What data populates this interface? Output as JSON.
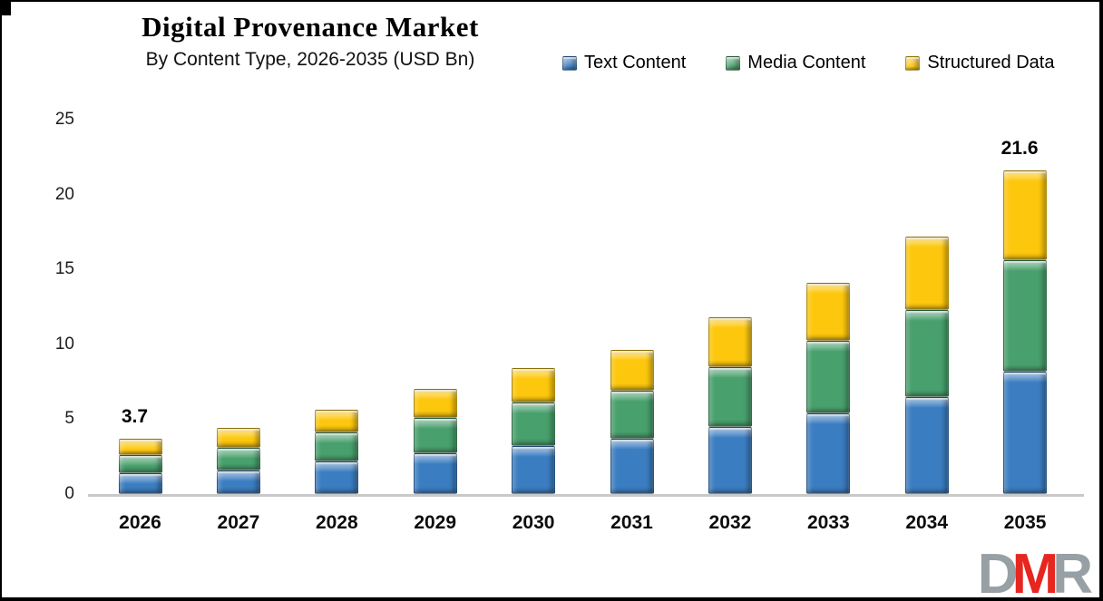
{
  "header": {
    "title": "Digital Provenance Market",
    "subtitle": "By Content Type, 2026-2035 (USD Bn)"
  },
  "chart_data": {
    "type": "bar",
    "stacked": true,
    "title": "Digital Provenance Market",
    "subtitle": "By Content Type, 2026-2035 (USD Bn)",
    "unit": "USD Bn",
    "categories": [
      "2026",
      "2027",
      "2028",
      "2029",
      "2030",
      "2031",
      "2032",
      "2033",
      "2034",
      "2035"
    ],
    "series": [
      {
        "name": "Text Content",
        "color": "#3b7dc1",
        "values": [
          1.4,
          1.6,
          2.2,
          2.7,
          3.2,
          3.7,
          4.5,
          5.4,
          6.5,
          8.2
        ]
      },
      {
        "name": "Media Content",
        "color": "#48a06c",
        "values": [
          1.2,
          1.5,
          1.9,
          2.4,
          2.9,
          3.2,
          4.0,
          4.8,
          5.8,
          7.4
        ]
      },
      {
        "name": "Structured Data",
        "color": "#fdc70d",
        "values": [
          1.1,
          1.3,
          1.5,
          1.9,
          2.3,
          2.7,
          3.3,
          3.9,
          4.9,
          6.0
        ]
      }
    ],
    "totals": [
      3.7,
      4.4,
      5.6,
      7.0,
      8.4,
      9.6,
      11.8,
      14.1,
      17.2,
      21.6
    ],
    "data_labels": [
      {
        "category": "2026",
        "text": "3.7"
      },
      {
        "category": "2035",
        "text": "21.6"
      }
    ],
    "ylim": [
      0,
      25
    ],
    "yticks": [
      0,
      5,
      10,
      15,
      20,
      25
    ],
    "gridlines": false,
    "legend_position": "top-right",
    "xlabel": "",
    "ylabel": ""
  },
  "watermark": {
    "letters": [
      {
        "char": "D",
        "color": "#97a0a4"
      },
      {
        "char": "M",
        "color": "#e6261f"
      },
      {
        "char": "R",
        "color": "#97a0a4"
      }
    ]
  }
}
